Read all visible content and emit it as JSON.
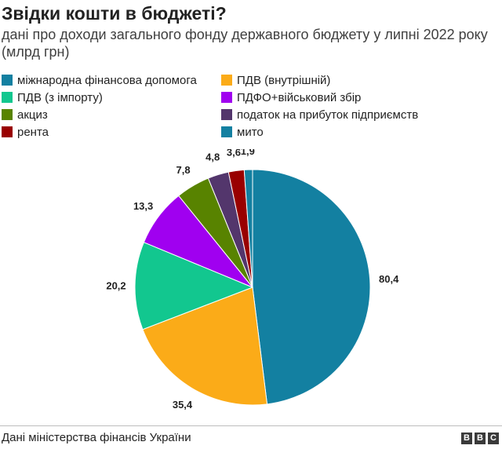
{
  "title": "Звідки кошти в бюджеті?",
  "subtitle": "дані про доходи загального фонду державного бюджету у липні 2022 року (млрд грн)",
  "source": "Дані міністерства фінансів України",
  "logo": [
    "B",
    "B",
    "C"
  ],
  "chart_data": {
    "type": "pie",
    "title": "Звідки кошти в бюджеті?",
    "unit": "млрд грн",
    "legend_position": "top",
    "slices": [
      {
        "name": "міжнародна фінансова допомога",
        "value": 80.4,
        "label": "80,4",
        "color": "#1380a1"
      },
      {
        "name": "ПДВ (внутрішній)",
        "value": 35.4,
        "label": "35,4",
        "color": "#fbab18"
      },
      {
        "name": "ПДВ (з імпорту)",
        "value": 20.2,
        "label": "20,2",
        "color": "#12c78f"
      },
      {
        "name": "ПДФО+військовий збір",
        "value": 13.3,
        "label": "13,3",
        "color": "#a000f0"
      },
      {
        "name": "акциз",
        "value": 7.8,
        "label": "7,8",
        "color": "#588300"
      },
      {
        "name": "податок на прибуток підприємств",
        "value": 4.8,
        "label": "4,8",
        "color": "#53366c"
      },
      {
        "name": "рента",
        "value": 3.6,
        "label": "3,6",
        "color": "#990000"
      },
      {
        "name": "мито",
        "value": 1.9,
        "label": "1,9",
        "color": "#1380a1"
      }
    ]
  }
}
